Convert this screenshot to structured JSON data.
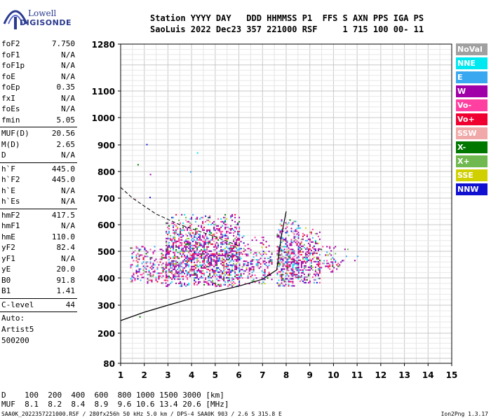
{
  "logo": {
    "top": "Lowell",
    "bottom": "DIGISONDE"
  },
  "header": {
    "line1": "Station YYYY DAY   DDD HHMMSS P1  FFS S AXN PPS IGA PS",
    "line2": "SaoLuis 2022 Dec23 357 221000 RSF     1 715 100 00- 11"
  },
  "params_groups": [
    [
      {
        "label": "foF2",
        "value": "7.750"
      },
      {
        "label": "foF1",
        "value": "N/A"
      },
      {
        "label": "foF1p",
        "value": "N/A"
      },
      {
        "label": "foE",
        "value": "N/A"
      },
      {
        "label": "foEp",
        "value": "0.35"
      },
      {
        "label": "fxI",
        "value": "N/A"
      },
      {
        "label": "foEs",
        "value": "N/A"
      },
      {
        "label": "fmin",
        "value": "5.05"
      }
    ],
    [
      {
        "label": "MUF(D)",
        "value": "20.56"
      },
      {
        "label": "M(D)",
        "value": "2.65"
      },
      {
        "label": "D",
        "value": "N/A"
      }
    ],
    [
      {
        "label": "h`F",
        "value": "445.0"
      },
      {
        "label": "h`F2",
        "value": "445.0"
      },
      {
        "label": "h`E",
        "value": "N/A"
      },
      {
        "label": "h`Es",
        "value": "N/A"
      }
    ],
    [
      {
        "label": "hmF2",
        "value": "417.5"
      },
      {
        "label": "hmF1",
        "value": "N/A"
      },
      {
        "label": "hmE",
        "value": "110.0"
      },
      {
        "label": "yF2",
        "value": "82.4"
      },
      {
        "label": "yF1",
        "value": "N/A"
      },
      {
        "label": "yE",
        "value": "20.0"
      },
      {
        "label": "B0",
        "value": "91.8"
      },
      {
        "label": "B1",
        "value": "1.41"
      }
    ],
    [
      {
        "label": "C-level",
        "value": "44"
      }
    ]
  ],
  "auto": [
    "Auto:",
    "Artist5",
    "500200"
  ],
  "legend": [
    {
      "label": "NoVal",
      "color": "#a0a0a0"
    },
    {
      "label": "NNE",
      "color": "#00e8f0"
    },
    {
      "label": "E",
      "color": "#3aa8f0"
    },
    {
      "label": "W",
      "color": "#a000a8"
    },
    {
      "label": "Vo-",
      "color": "#ff40a0"
    },
    {
      "label": "Vo+",
      "color": "#f00030"
    },
    {
      "label": "SSW",
      "color": "#f0a8a8"
    },
    {
      "label": "X-",
      "color": "#007800"
    },
    {
      "label": "X+",
      "color": "#70b850"
    },
    {
      "label": "SSE",
      "color": "#d0d000"
    },
    {
      "label": "NNW",
      "color": "#1010d0"
    }
  ],
  "dtable": {
    "d_row": "D    100  200  400  600  800 1000 1500 3000 [km]",
    "muf_row": "MUF  8.1  8.2  8.4  8.9  9.6 10.6 13.4 20.6 [MHz]"
  },
  "footer": "SAA0K_2022357221000.RSF / 280fx256h 50 kHz 5.0 km / DPS-4 SAA0K 903 / 2.6 S 315.8 E",
  "version": "Ion2Png 1.3.17",
  "chart_data": {
    "type": "scatter",
    "xlim": [
      1,
      15
    ],
    "ylim": [
      80,
      1280
    ],
    "x_ticks": [
      1,
      2,
      3,
      4,
      5,
      6,
      7,
      8,
      9,
      10,
      11,
      12,
      13,
      14,
      15
    ],
    "y_ticks": [
      80,
      200,
      300,
      400,
      500,
      600,
      700,
      800,
      900,
      1000,
      1100,
      1280
    ],
    "grid": true,
    "echo_clusters": [
      {
        "x": [
          2.9,
          6.0
        ],
        "y": [
          370,
          640
        ],
        "density": 0.62
      },
      {
        "x": [
          1.4,
          2.9
        ],
        "y": [
          380,
          520
        ],
        "density": 0.35
      },
      {
        "x": [
          6.0,
          7.4
        ],
        "y": [
          380,
          560
        ],
        "density": 0.3
      },
      {
        "x": [
          7.6,
          8.5
        ],
        "y": [
          370,
          620
        ],
        "density": 0.55
      },
      {
        "x": [
          8.5,
          9.4
        ],
        "y": [
          380,
          590
        ],
        "density": 0.5
      },
      {
        "x": [
          9.4,
          10.4
        ],
        "y": [
          420,
          520
        ],
        "density": 0.25
      },
      {
        "x": [
          10.4,
          11.0
        ],
        "y": [
          460,
          510
        ],
        "density": 0.12
      }
    ],
    "solid_curve": [
      [
        1.0,
        245
      ],
      [
        2.0,
        275
      ],
      [
        3.0,
        300
      ],
      [
        4.0,
        325
      ],
      [
        5.0,
        350
      ],
      [
        6.0,
        370
      ],
      [
        7.0,
        395
      ],
      [
        7.6,
        430
      ],
      [
        7.8,
        560
      ],
      [
        8.0,
        650
      ]
    ],
    "dashed_curve": [
      [
        1.0,
        740
      ],
      [
        1.5,
        700
      ],
      [
        2.0,
        670
      ],
      [
        2.5,
        640
      ],
      [
        3.0,
        620
      ],
      [
        3.5,
        600
      ],
      [
        4.0,
        585
      ],
      [
        4.5,
        570
      ],
      [
        5.0,
        555
      ],
      [
        6.0,
        520
      ]
    ]
  }
}
